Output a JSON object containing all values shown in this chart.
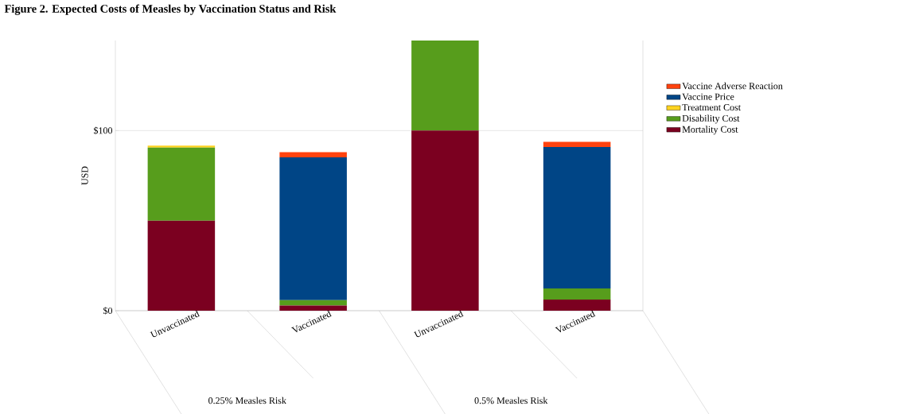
{
  "chart_data": {
    "type": "bar",
    "stacked": true,
    "title": "Figure 2. Expected Costs of Measles by Vaccination Status and Risk",
    "ylabel": "USD",
    "categories": [
      "Unvaccinated",
      "Vaccinated",
      "Unvaccinated",
      "Vaccinated"
    ],
    "annotations": [
      "0.25% Measles Risk",
      "0.5% Measles Risk"
    ],
    "series": [
      {
        "name": "Mortality Cost",
        "color": "#7b0020",
        "values": [
          50,
          2.9,
          100,
          6.2
        ]
      },
      {
        "name": "Disability Cost",
        "color": "#579d1c",
        "values": [
          40.5,
          2.9,
          50,
          6.2
        ]
      },
      {
        "name": "Treatment Cost",
        "color": "#ffd320",
        "values": [
          1.2,
          0,
          0,
          0
        ]
      },
      {
        "name": "Vaccine Price",
        "color": "#004586",
        "values": [
          0,
          79.3,
          0,
          78.5
        ]
      },
      {
        "name": "Vaccine Adverse Reaction",
        "color": "#ff420e",
        "values": [
          0,
          2.9,
          0,
          2.9
        ]
      }
    ],
    "ylim": [
      0,
      150
    ],
    "yticks": [
      {
        "value": 0,
        "label": "$0"
      },
      {
        "value": 100,
        "label": "$100"
      }
    ],
    "grid": "y",
    "legend": "right"
  }
}
